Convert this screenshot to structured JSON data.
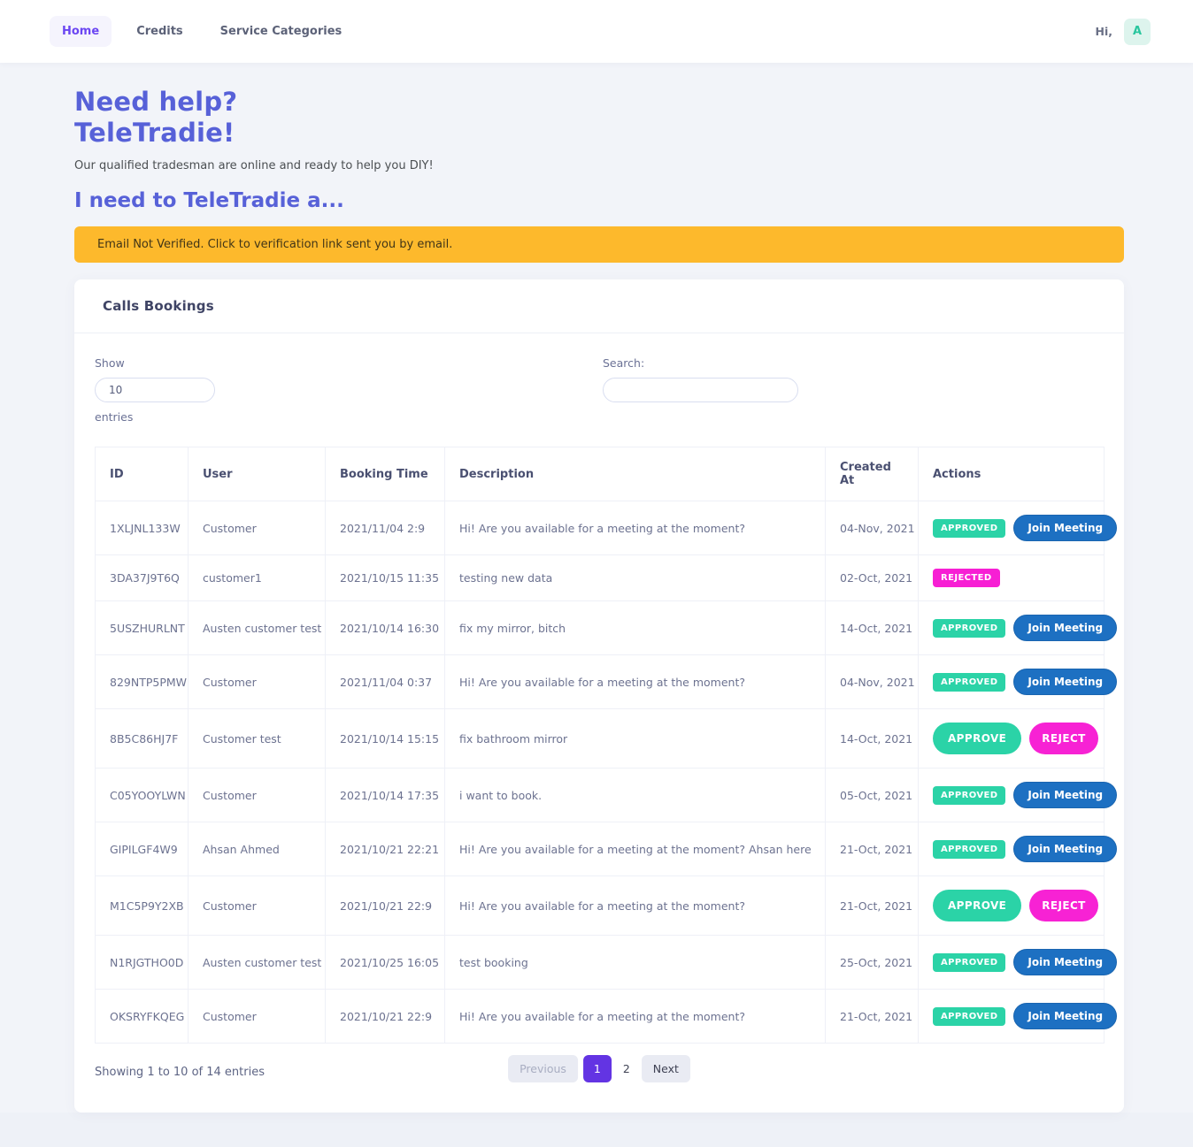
{
  "nav": {
    "items": [
      {
        "label": "Home",
        "active": true
      },
      {
        "label": "Credits",
        "active": false
      },
      {
        "label": "Service Categories",
        "active": false
      }
    ],
    "greeting": "Hi,",
    "avatar_initial": "A"
  },
  "hero": {
    "title_line1": "Need help?",
    "title_line2": "TeleTradie!",
    "subtitle": "Our qualified tradesman are online and ready to help you DIY!",
    "prompt": "I need to TeleTradie a..."
  },
  "alert": {
    "message": "Email Not Verified. Click to verification link sent you by email."
  },
  "card": {
    "title": "Calls Bookings",
    "show_label": "Show",
    "page_size": "10",
    "entries_label": "entries",
    "search_label": "Search:",
    "search_value": "",
    "table": {
      "columns": [
        "ID",
        "User",
        "Booking Time",
        "Description",
        "Created At",
        "Actions"
      ],
      "rows": [
        {
          "id": "1XLJNL133W",
          "user": "Customer",
          "booking_time": "2021/11/04 2:9",
          "description": "Hi! Are you available for a meeting at the moment?",
          "created_at": "04-Nov, 2021",
          "status": "approved"
        },
        {
          "id": "3DA37J9T6Q",
          "user": "customer1",
          "booking_time": "2021/10/15 11:35",
          "description": "testing new data",
          "created_at": "02-Oct, 2021",
          "status": "rejected"
        },
        {
          "id": "5USZHURLNT",
          "user": "Austen customer test",
          "booking_time": "2021/10/14 16:30",
          "description": "fix my mirror, bitch",
          "created_at": "14-Oct, 2021",
          "status": "approved"
        },
        {
          "id": "829NTP5PMW",
          "user": "Customer",
          "booking_time": "2021/11/04 0:37",
          "description": "Hi! Are you available for a meeting at the moment?",
          "created_at": "04-Nov, 2021",
          "status": "approved"
        },
        {
          "id": "8B5C86HJ7F",
          "user": "Customer test",
          "booking_time": "2021/10/14 15:15",
          "description": "fix bathroom mirror",
          "created_at": "14-Oct, 2021",
          "status": "pending"
        },
        {
          "id": "C05YOOYLWN",
          "user": "Customer",
          "booking_time": "2021/10/14 17:35",
          "description": "i want to book.",
          "created_at": "05-Oct, 2021",
          "status": "approved"
        },
        {
          "id": "GIPILGF4W9",
          "user": "Ahsan Ahmed",
          "booking_time": "2021/10/21 22:21",
          "description": "Hi! Are you available for a meeting at the moment? Ahsan here",
          "created_at": "21-Oct, 2021",
          "status": "approved"
        },
        {
          "id": "M1C5P9Y2XB",
          "user": "Customer",
          "booking_time": "2021/10/21 22:9",
          "description": "Hi! Are you available for a meeting at the moment?",
          "created_at": "21-Oct, 2021",
          "status": "pending"
        },
        {
          "id": "N1RJGTHO0D",
          "user": "Austen customer test",
          "booking_time": "2021/10/25 16:05",
          "description": "test booking",
          "created_at": "25-Oct, 2021",
          "status": "approved"
        },
        {
          "id": "OKSRYFKQEG",
          "user": "Customer",
          "booking_time": "2021/10/21 22:9",
          "description": "Hi! Are you available for a meeting at the moment?",
          "created_at": "21-Oct, 2021",
          "status": "approved"
        }
      ]
    },
    "footer": {
      "summary": "Showing 1 to 10 of 14 entries",
      "pagination": {
        "previous_label": "Previous",
        "pages": [
          "1",
          "2"
        ],
        "active_page": "1",
        "next_label": "Next"
      }
    }
  },
  "actions": {
    "approved_badge": "APPROVED",
    "rejected_badge": "REJECTED",
    "join_meeting": "Join Meeting",
    "approve": "APPROVE",
    "reject": "REJECT"
  },
  "colors": {
    "heading_indigo": "#5761d8",
    "nav_active_purple": "#6b46f2",
    "alert_amber": "#fdb92c",
    "approved_teal": "#2bd3a7",
    "reject_magenta": "#f722d4",
    "join_blue": "#1d70c2",
    "pagination_active_purple": "#6334e3",
    "avatar_teal": "#29c69e"
  }
}
